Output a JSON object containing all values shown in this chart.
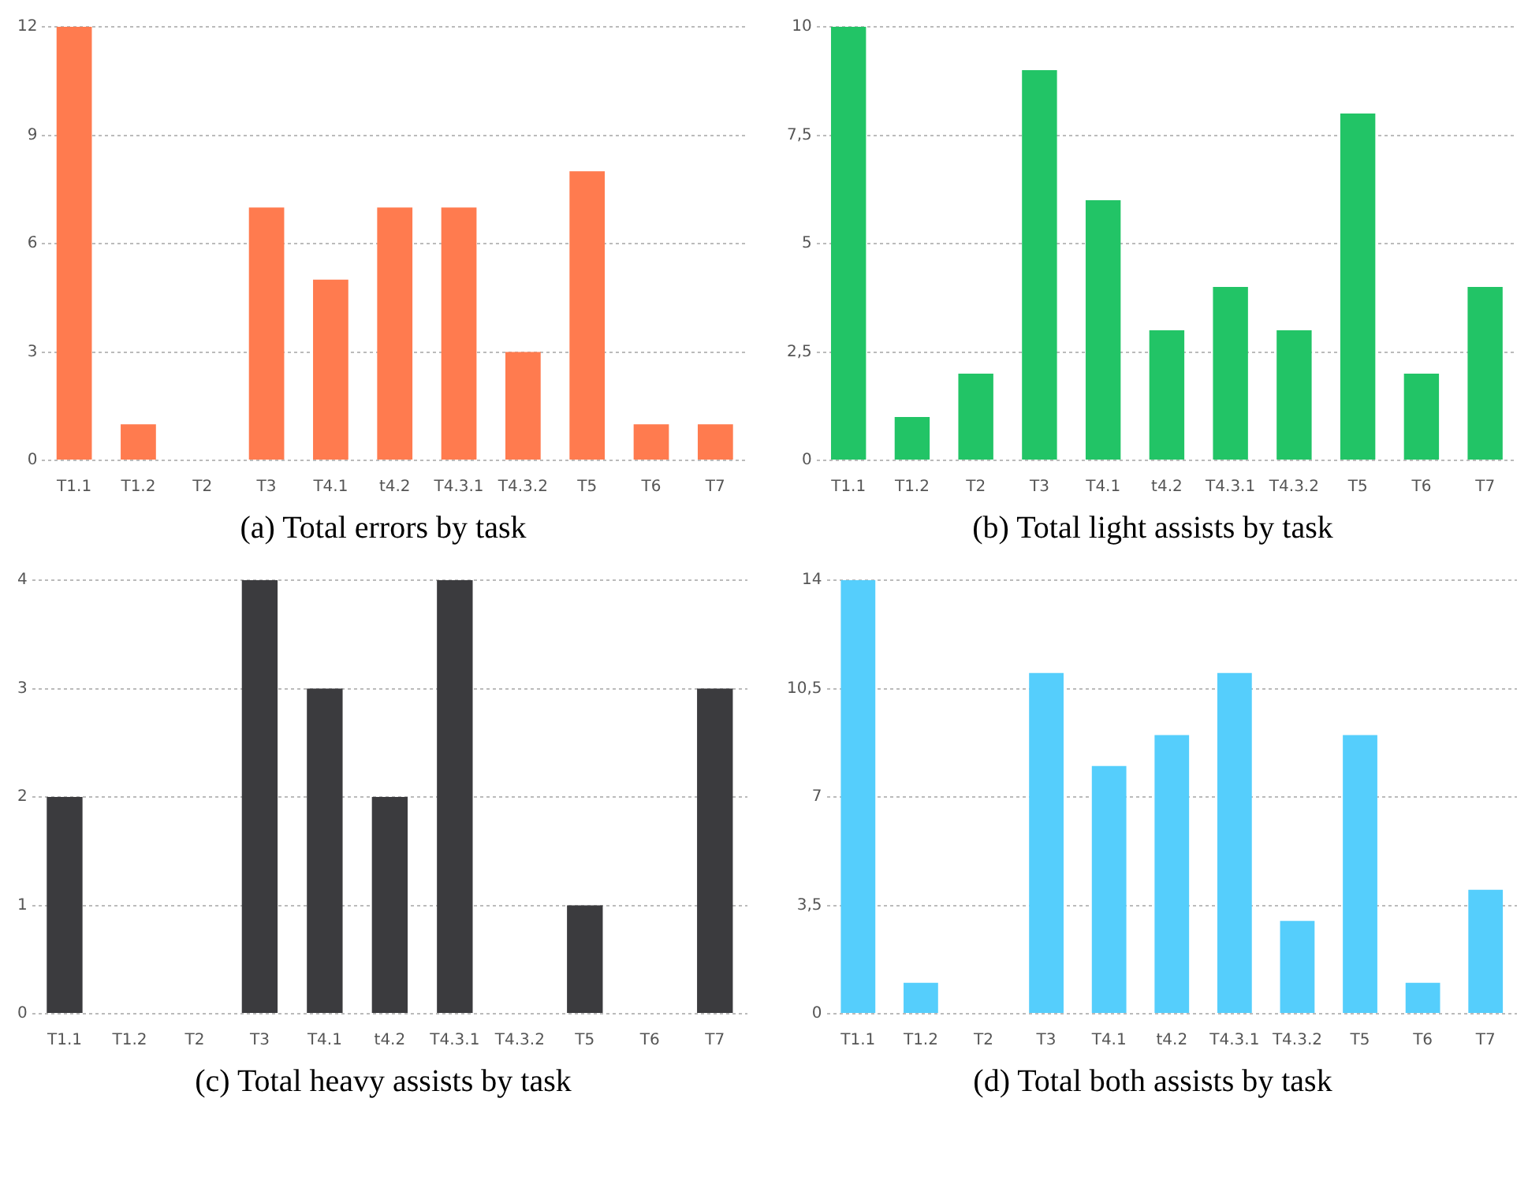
{
  "chart_data": [
    {
      "type": "bar",
      "title": "(a) Total errors by task",
      "categories": [
        "T1.1",
        "T1.2",
        "T2",
        "T3",
        "T4.1",
        "t4.2",
        "T4.3.1",
        "T4.3.2",
        "T5",
        "T6",
        "T7"
      ],
      "values": [
        12,
        1,
        0,
        7,
        5,
        7,
        7,
        3,
        8,
        1,
        1
      ],
      "color": "#ff7b4f",
      "ylim": [
        0,
        12
      ],
      "yticks": [
        0,
        3,
        6,
        9,
        12
      ],
      "grid": "y"
    },
    {
      "type": "bar",
      "title": "(b) Total light assists by task",
      "categories": [
        "T1.1",
        "T1.2",
        "T2",
        "T3",
        "T4.1",
        "t4.2",
        "T4.3.1",
        "T4.3.2",
        "T5",
        "T6",
        "T7"
      ],
      "values": [
        10,
        1,
        2,
        9,
        6,
        3,
        4,
        3,
        8,
        2,
        4
      ],
      "color": "#22c466",
      "ylim": [
        0,
        10
      ],
      "yticks": [
        0,
        {
          "value": 2.5,
          "label": "2,5"
        },
        5,
        {
          "value": 7.5,
          "label": "7,5"
        },
        10
      ],
      "grid": "y"
    },
    {
      "type": "bar",
      "title": "(c) Total heavy assists by task",
      "categories": [
        "T1.1",
        "T1.2",
        "T2",
        "T3",
        "T4.1",
        "t4.2",
        "T4.3.1",
        "T4.3.2",
        "T5",
        "T6",
        "T7"
      ],
      "values": [
        2,
        0,
        0,
        4,
        3,
        2,
        4,
        0,
        1,
        0,
        3
      ],
      "color": "#3b3b3e",
      "ylim": [
        0,
        4
      ],
      "yticks": [
        0,
        1,
        2,
        3,
        4
      ],
      "grid": "y"
    },
    {
      "type": "bar",
      "title": "(d) Total both assists by task",
      "categories": [
        "T1.1",
        "T1.2",
        "T2",
        "T3",
        "T4.1",
        "t4.2",
        "T4.3.1",
        "T4.3.2",
        "T5",
        "T6",
        "T7"
      ],
      "values": [
        14,
        1,
        0,
        11,
        8,
        9,
        11,
        3,
        9,
        1,
        4
      ],
      "color": "#55cefc",
      "ylim": [
        0,
        14
      ],
      "yticks": [
        0,
        {
          "value": 3.5,
          "label": "3,5"
        },
        7,
        {
          "value": 10.5,
          "label": "10,5"
        },
        14
      ],
      "grid": "y"
    }
  ]
}
